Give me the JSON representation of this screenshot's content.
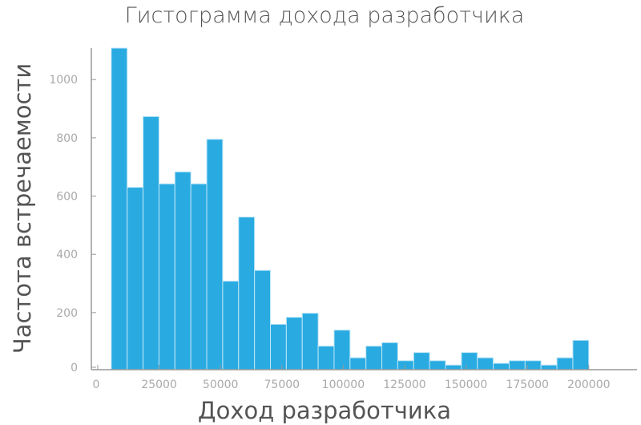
{
  "chart_data": {
    "type": "bar",
    "title": "Гистограмма дохода разработчика",
    "xlabel": "Доход разработчика",
    "ylabel": "Частота встречаемости",
    "bar_color": "#29abe2",
    "bins": {
      "min": 5500,
      "max": 200000,
      "count": 30
    },
    "values": [
      1112,
      630,
      873,
      642,
      683,
      642,
      795,
      308,
      528,
      345,
      160,
      184,
      198,
      85,
      140,
      45,
      85,
      97,
      35,
      63,
      35,
      20,
      63,
      45,
      26,
      35,
      35,
      20,
      45,
      105
    ],
    "xlim": [
      0,
      220000
    ],
    "ylim": [
      0,
      1112
    ],
    "xticks": [
      0,
      25000,
      50000,
      75000,
      100000,
      125000,
      150000,
      175000,
      200000
    ],
    "yticks": [
      0,
      200,
      400,
      600,
      800,
      1000
    ],
    "grid": false,
    "legend": "none"
  }
}
